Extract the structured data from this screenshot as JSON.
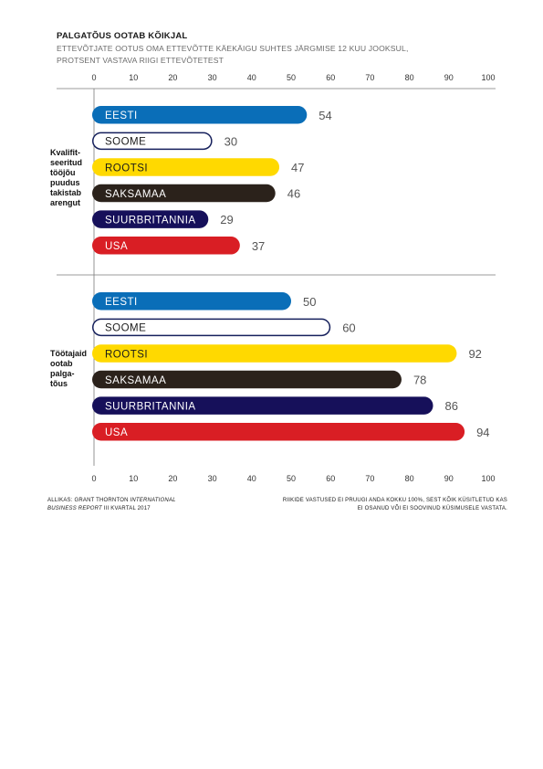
{
  "header": {
    "title": "PALGATÕUS OOTAB KÕIKJAL",
    "subtitle_line1": "ETTEVÕTJATE OOTUS OMA ETTEVÕTTE KÄEKÄIGU SUHTES JÄRGMISE 12 KUU JOOKSUL,",
    "subtitle_line2": "PROTSENT VASTAVA RIIGI ETTEVÕTETEST"
  },
  "footer": {
    "source_prefix": "ALLIKAS: GRANT THORNTON",
    "source_italic_1": "INTERNATIONAL",
    "source_italic_2": "BUSINESS REPORT",
    "source_suffix": "III KVARTAL 2017",
    "note_line1": "RIIKIDE VASTUSED EI PRUUGI ANDA KOKKU 100%, SEST KÕIK KÜSITLETUD KAS",
    "note_line2": "EI OSANUD VÕI EI SOOVINUD KÜSIMUSELE VASTATA."
  },
  "chart_data": {
    "type": "bar",
    "orientation": "horizontal",
    "xlim": [
      0,
      100
    ],
    "ticks": [
      0,
      10,
      20,
      30,
      40,
      50,
      60,
      70,
      80,
      90,
      100
    ],
    "grid": false,
    "groups": [
      {
        "label_lines": [
          "Kvalifit-",
          "seeritud",
          "tööjõu",
          "puudus",
          "takistab",
          "arengut"
        ],
        "bars": [
          {
            "country": "EESTI",
            "value": 54,
            "color": "#0a6eb8",
            "filled": true
          },
          {
            "country": "SOOME",
            "value": 30,
            "color": "#16205c",
            "filled": false
          },
          {
            "country": "ROOTSI",
            "value": 47,
            "color": "#ffd900",
            "filled": true
          },
          {
            "country": "SAKSAMAA",
            "value": 46,
            "color": "#2b221b",
            "filled": true
          },
          {
            "country": "SUURBRITANNIA",
            "value": 29,
            "color": "#16105a",
            "filled": true
          },
          {
            "country": "USA",
            "value": 37,
            "color": "#d91e24",
            "filled": true
          }
        ]
      },
      {
        "label_lines": [
          "Töötajaid",
          "ootab",
          "palga-",
          "tõus"
        ],
        "bars": [
          {
            "country": "EESTI",
            "value": 50,
            "color": "#0a6eb8",
            "filled": true
          },
          {
            "country": "SOOME",
            "value": 60,
            "color": "#16205c",
            "filled": false
          },
          {
            "country": "ROOTSI",
            "value": 92,
            "color": "#ffd900",
            "filled": true
          },
          {
            "country": "SAKSAMAA",
            "value": 78,
            "color": "#2b221b",
            "filled": true
          },
          {
            "country": "SUURBRITANNIA",
            "value": 86,
            "color": "#16105a",
            "filled": true
          },
          {
            "country": "USA",
            "value": 94,
            "color": "#d91e24",
            "filled": true
          }
        ]
      }
    ]
  }
}
